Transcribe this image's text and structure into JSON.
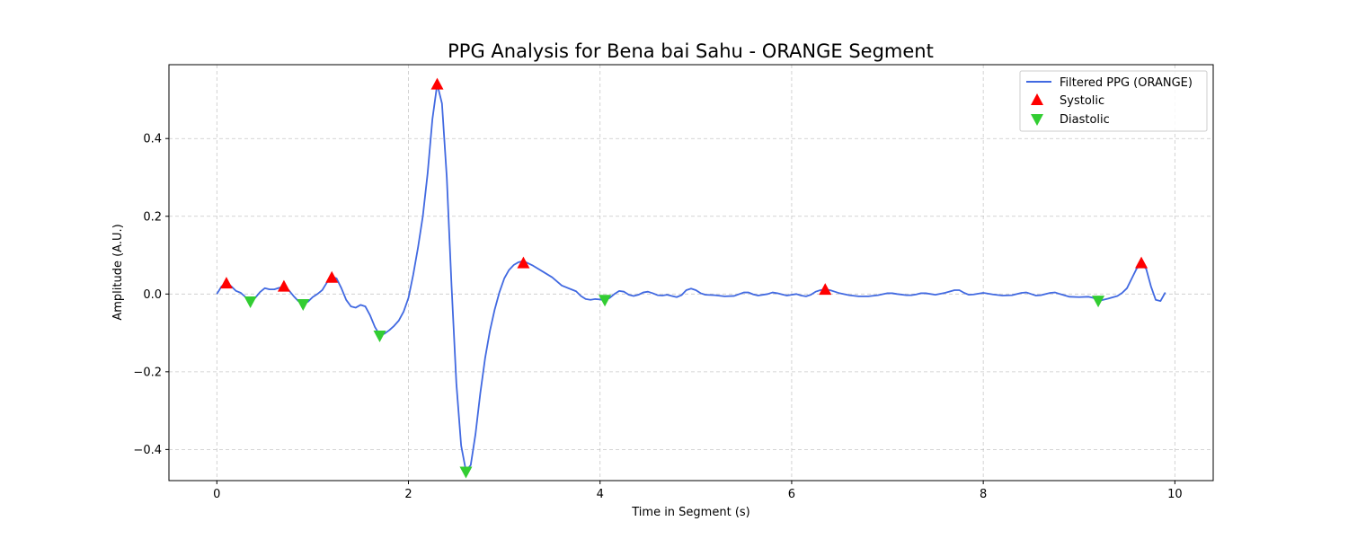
{
  "chart_data": {
    "type": "line",
    "title": "PPG Analysis for Bena bai Sahu - ORANGE Segment",
    "xlabel": "Time in Segment (s)",
    "ylabel": "Amplitude (A.U.)",
    "xlim": [
      -0.5,
      10.4
    ],
    "ylim": [
      -0.48,
      0.59
    ],
    "xticks": [
      0,
      2,
      4,
      6,
      8,
      10
    ],
    "yticks": [
      -0.4,
      -0.2,
      0.0,
      0.2,
      0.4
    ],
    "xtick_labels": [
      "0",
      "2",
      "4",
      "6",
      "8",
      "10"
    ],
    "ytick_labels": [
      "−0.4",
      "−0.2",
      "0.0",
      "0.2",
      "0.4"
    ],
    "grid": true,
    "legend_position": "top-right",
    "series": [
      {
        "name": "Filtered PPG (ORANGE)",
        "kind": "line",
        "color": "#4169e1",
        "points": [
          [
            0.0,
            0.0
          ],
          [
            0.05,
            0.02
          ],
          [
            0.1,
            0.025
          ],
          [
            0.15,
            0.02
          ],
          [
            0.2,
            0.008
          ],
          [
            0.25,
            0.003
          ],
          [
            0.3,
            -0.008
          ],
          [
            0.35,
            -0.018
          ],
          [
            0.4,
            -0.01
          ],
          [
            0.45,
            0.005
          ],
          [
            0.5,
            0.015
          ],
          [
            0.55,
            0.012
          ],
          [
            0.6,
            0.012
          ],
          [
            0.65,
            0.016
          ],
          [
            0.7,
            0.018
          ],
          [
            0.75,
            0.01
          ],
          [
            0.8,
            -0.005
          ],
          [
            0.85,
            -0.018
          ],
          [
            0.9,
            -0.025
          ],
          [
            0.95,
            -0.02
          ],
          [
            1.0,
            -0.008
          ],
          [
            1.05,
            0.0
          ],
          [
            1.1,
            0.01
          ],
          [
            1.15,
            0.03
          ],
          [
            1.2,
            0.045
          ],
          [
            1.25,
            0.04
          ],
          [
            1.3,
            0.015
          ],
          [
            1.35,
            -0.015
          ],
          [
            1.4,
            -0.032
          ],
          [
            1.45,
            -0.035
          ],
          [
            1.5,
            -0.028
          ],
          [
            1.55,
            -0.032
          ],
          [
            1.6,
            -0.055
          ],
          [
            1.65,
            -0.085
          ],
          [
            1.7,
            -0.105
          ],
          [
            1.75,
            -0.102
          ],
          [
            1.8,
            -0.093
          ],
          [
            1.85,
            -0.082
          ],
          [
            1.9,
            -0.068
          ],
          [
            1.95,
            -0.045
          ],
          [
            2.0,
            -0.01
          ],
          [
            2.05,
            0.05
          ],
          [
            2.1,
            0.12
          ],
          [
            2.15,
            0.2
          ],
          [
            2.2,
            0.31
          ],
          [
            2.25,
            0.45
          ],
          [
            2.3,
            0.54
          ],
          [
            2.35,
            0.49
          ],
          [
            2.4,
            0.3
          ],
          [
            2.45,
            0.02
          ],
          [
            2.5,
            -0.23
          ],
          [
            2.55,
            -0.39
          ],
          [
            2.6,
            -0.455
          ],
          [
            2.65,
            -0.44
          ],
          [
            2.7,
            -0.36
          ],
          [
            2.75,
            -0.255
          ],
          [
            2.8,
            -0.165
          ],
          [
            2.85,
            -0.095
          ],
          [
            2.9,
            -0.04
          ],
          [
            2.95,
            0.005
          ],
          [
            3.0,
            0.04
          ],
          [
            3.05,
            0.062
          ],
          [
            3.1,
            0.075
          ],
          [
            3.15,
            0.082
          ],
          [
            3.2,
            0.085
          ],
          [
            3.3,
            0.073
          ],
          [
            3.4,
            0.058
          ],
          [
            3.5,
            0.043
          ],
          [
            3.6,
            0.022
          ],
          [
            3.7,
            0.012
          ],
          [
            3.75,
            0.007
          ],
          [
            3.8,
            -0.005
          ],
          [
            3.85,
            -0.013
          ],
          [
            3.9,
            -0.015
          ],
          [
            3.95,
            -0.013
          ],
          [
            4.0,
            -0.014
          ],
          [
            4.05,
            -0.016
          ],
          [
            4.1,
            -0.01
          ],
          [
            4.15,
            0.0
          ],
          [
            4.2,
            0.008
          ],
          [
            4.25,
            0.006
          ],
          [
            4.3,
            -0.002
          ],
          [
            4.35,
            -0.005
          ],
          [
            4.4,
            -0.002
          ],
          [
            4.45,
            0.004
          ],
          [
            4.5,
            0.006
          ],
          [
            4.55,
            0.002
          ],
          [
            4.6,
            -0.003
          ],
          [
            4.65,
            -0.004
          ],
          [
            4.7,
            -0.002
          ],
          [
            4.75,
            -0.005
          ],
          [
            4.8,
            -0.008
          ],
          [
            4.85,
            -0.003
          ],
          [
            4.9,
            0.01
          ],
          [
            4.95,
            0.014
          ],
          [
            5.0,
            0.01
          ],
          [
            5.05,
            0.002
          ],
          [
            5.1,
            -0.002
          ],
          [
            5.2,
            -0.003
          ],
          [
            5.3,
            -0.006
          ],
          [
            5.4,
            -0.005
          ],
          [
            5.5,
            0.004
          ],
          [
            5.55,
            0.004
          ],
          [
            5.6,
            -0.001
          ],
          [
            5.65,
            -0.004
          ],
          [
            5.75,
            0.0
          ],
          [
            5.8,
            0.004
          ],
          [
            5.85,
            0.002
          ],
          [
            5.9,
            -0.001
          ],
          [
            5.95,
            -0.004
          ],
          [
            6.0,
            -0.002
          ],
          [
            6.05,
            0.0
          ],
          [
            6.1,
            -0.004
          ],
          [
            6.15,
            -0.006
          ],
          [
            6.2,
            -0.002
          ],
          [
            6.25,
            0.006
          ],
          [
            6.3,
            0.01
          ],
          [
            6.35,
            0.012
          ],
          [
            6.4,
            0.01
          ],
          [
            6.45,
            0.006
          ],
          [
            6.5,
            0.002
          ],
          [
            6.6,
            -0.003
          ],
          [
            6.7,
            -0.006
          ],
          [
            6.8,
            -0.006
          ],
          [
            6.9,
            -0.003
          ],
          [
            7.0,
            0.002
          ],
          [
            7.05,
            0.002
          ],
          [
            7.1,
            0.0
          ],
          [
            7.2,
            -0.003
          ],
          [
            7.25,
            -0.003
          ],
          [
            7.3,
            -0.001
          ],
          [
            7.35,
            0.002
          ],
          [
            7.4,
            0.002
          ],
          [
            7.5,
            -0.002
          ],
          [
            7.6,
            0.003
          ],
          [
            7.7,
            0.01
          ],
          [
            7.75,
            0.01
          ],
          [
            7.8,
            0.003
          ],
          [
            7.85,
            -0.002
          ],
          [
            7.9,
            -0.001
          ],
          [
            8.0,
            0.003
          ],
          [
            8.1,
            -0.001
          ],
          [
            8.2,
            -0.004
          ],
          [
            8.3,
            -0.003
          ],
          [
            8.4,
            0.003
          ],
          [
            8.45,
            0.004
          ],
          [
            8.5,
            0.0
          ],
          [
            8.55,
            -0.004
          ],
          [
            8.6,
            -0.003
          ],
          [
            8.7,
            0.003
          ],
          [
            8.75,
            0.004
          ],
          [
            8.8,
            0.0
          ],
          [
            8.9,
            -0.007
          ],
          [
            9.0,
            -0.008
          ],
          [
            9.1,
            -0.007
          ],
          [
            9.15,
            -0.01
          ],
          [
            9.2,
            -0.018
          ],
          [
            9.3,
            -0.012
          ],
          [
            9.4,
            -0.005
          ],
          [
            9.45,
            0.003
          ],
          [
            9.5,
            0.015
          ],
          [
            9.55,
            0.04
          ],
          [
            9.6,
            0.065
          ],
          [
            9.65,
            0.077
          ],
          [
            9.7,
            0.065
          ],
          [
            9.75,
            0.02
          ],
          [
            9.8,
            -0.015
          ],
          [
            9.85,
            -0.018
          ],
          [
            9.9,
            0.004
          ]
        ]
      },
      {
        "name": "Systolic",
        "kind": "markers",
        "marker": "triangle-up",
        "color": "#ff0000",
        "points": [
          [
            0.1,
            0.028
          ],
          [
            0.7,
            0.02
          ],
          [
            1.2,
            0.043
          ],
          [
            2.3,
            0.54
          ],
          [
            3.2,
            0.08
          ],
          [
            6.35,
            0.012
          ],
          [
            9.65,
            0.08
          ]
        ]
      },
      {
        "name": "Diastolic",
        "kind": "markers",
        "marker": "triangle-down",
        "color": "#32cd32",
        "points": [
          [
            0.35,
            -0.02
          ],
          [
            0.9,
            -0.027
          ],
          [
            1.7,
            -0.108
          ],
          [
            2.6,
            -0.458
          ],
          [
            4.05,
            -0.016
          ],
          [
            9.2,
            -0.018
          ]
        ]
      }
    ]
  }
}
